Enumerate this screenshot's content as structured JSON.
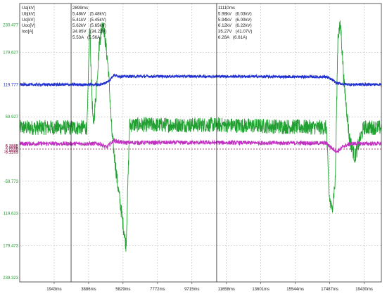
{
  "chart_data": {
    "type": "line",
    "xlabel": "",
    "ylabel": "",
    "xunit": "ms",
    "xlim": [
      0,
      20400
    ],
    "x_ticks": [
      "1943ms",
      "3886ms",
      "5829ms",
      "7772ms",
      "9715ms",
      "11658ms",
      "13601ms",
      "15544ms",
      "17487ms",
      "19430ms"
    ],
    "x_tick_values": [
      1943,
      3886,
      5829,
      7772,
      9715,
      11658,
      13601,
      15544,
      17487,
      19430
    ],
    "grid": true,
    "legend": {
      "placement": "top-left",
      "entries": [
        {
          "name": "Ua[kV]",
          "color": "#c8a000"
        },
        {
          "name": "Ub[kV]",
          "color": "#d040d0"
        },
        {
          "name": "Uc[kV]",
          "color": "#2030d0"
        },
        {
          "name": "Uoo[V]",
          "color": "#20a030"
        },
        {
          "name": "Ioo[A]",
          "color": "#c030c0"
        }
      ]
    },
    "y_axis_labels": [
      {
        "text": "230.477",
        "color": "#20a030",
        "level": 230.477
      },
      {
        "text": "6.1885",
        "color": "#801040",
        "level": 6.1885
      },
      {
        "text": "179.627",
        "color": "#20a030",
        "level": 179.627
      },
      {
        "text": "119.777",
        "color": "#2030d0",
        "level": 119.777
      },
      {
        "text": "2.5685",
        "color": "#801040",
        "level": 2.5685
      },
      {
        "text": "59.927",
        "color": "#20a030",
        "level": 59.927
      },
      {
        "text": "0",
        "color": "#801040",
        "level": 0
      },
      {
        "text": "-59.773",
        "color": "#20a030",
        "level": -59.773
      },
      {
        "text": "-2.5893",
        "color": "#801040",
        "level": -2.5893
      },
      {
        "text": "119.623",
        "color": "#20a030",
        "level": -119.623
      },
      {
        "text": "179.473",
        "color": "#20a030",
        "level": -179.473
      },
      {
        "text": "-6.1263",
        "color": "#801040",
        "level": -6.1263
      },
      {
        "text": "239.323",
        "color": "#20a030",
        "level": -239.323
      }
    ],
    "cursors": [
      {
        "time": "2899ms",
        "x": 2899,
        "readings": [
          "5.48kV   (5.48kV)",
          "5.41kV   (5.45kV)",
          "5.62kV   (5.65kV)",
          "34.85V   (34.22V)",
          "5.53A   (5.56A)"
        ]
      },
      {
        "time": "11110ms",
        "x": 11110,
        "readings": [
          "5.98kV   (6.03kV)",
          "5.94kV   (6.00kV)",
          "6.12kV   (6.22kV)",
          "35.27V   (41.07V)",
          "6.28A   (6.61A)"
        ]
      }
    ],
    "series": [
      {
        "name": "Uc[kV]",
        "color": "#2030d0",
        "scale": "left",
        "x": [
          0,
          4600,
          5000,
          5300,
          5700,
          11000,
          17300,
          17600,
          17900,
          18200,
          18600,
          20400
        ],
        "y": [
          119.7,
          119.8,
          126,
          137,
          135,
          135,
          134,
          129,
          122,
          121,
          120,
          120
        ],
        "noise": 2.5
      },
      {
        "name": "Ioo[A]",
        "color": "#c030c0",
        "scale": "left",
        "x": [
          0,
          4500,
          4900,
          5300,
          5800,
          11000,
          17300,
          17600,
          17900,
          18300,
          18700,
          20400
        ],
        "y": [
          10,
          10,
          3,
          16,
          12,
          12,
          11,
          2,
          -5,
          6,
          10,
          10
        ],
        "noise": 4
      },
      {
        "name": "Uoo[V]",
        "color": "#20a030",
        "scale": "left",
        "x": [
          0,
          3800,
          3950,
          4050,
          4150,
          4300,
          4500,
          4700,
          5000,
          5200,
          5500,
          6000,
          6200,
          11000,
          17300,
          17450,
          17600,
          17800,
          17950,
          18100,
          18300,
          18600,
          18900,
          19400,
          20400
        ],
        "y": [
          40,
          40,
          230,
          120,
          40,
          100,
          200,
          238,
          150,
          30,
          -60,
          -180,
          45,
          45,
          40,
          -85,
          -115,
          -60,
          210,
          230,
          120,
          20,
          -15,
          40,
          40
        ],
        "noise": 14
      }
    ]
  }
}
